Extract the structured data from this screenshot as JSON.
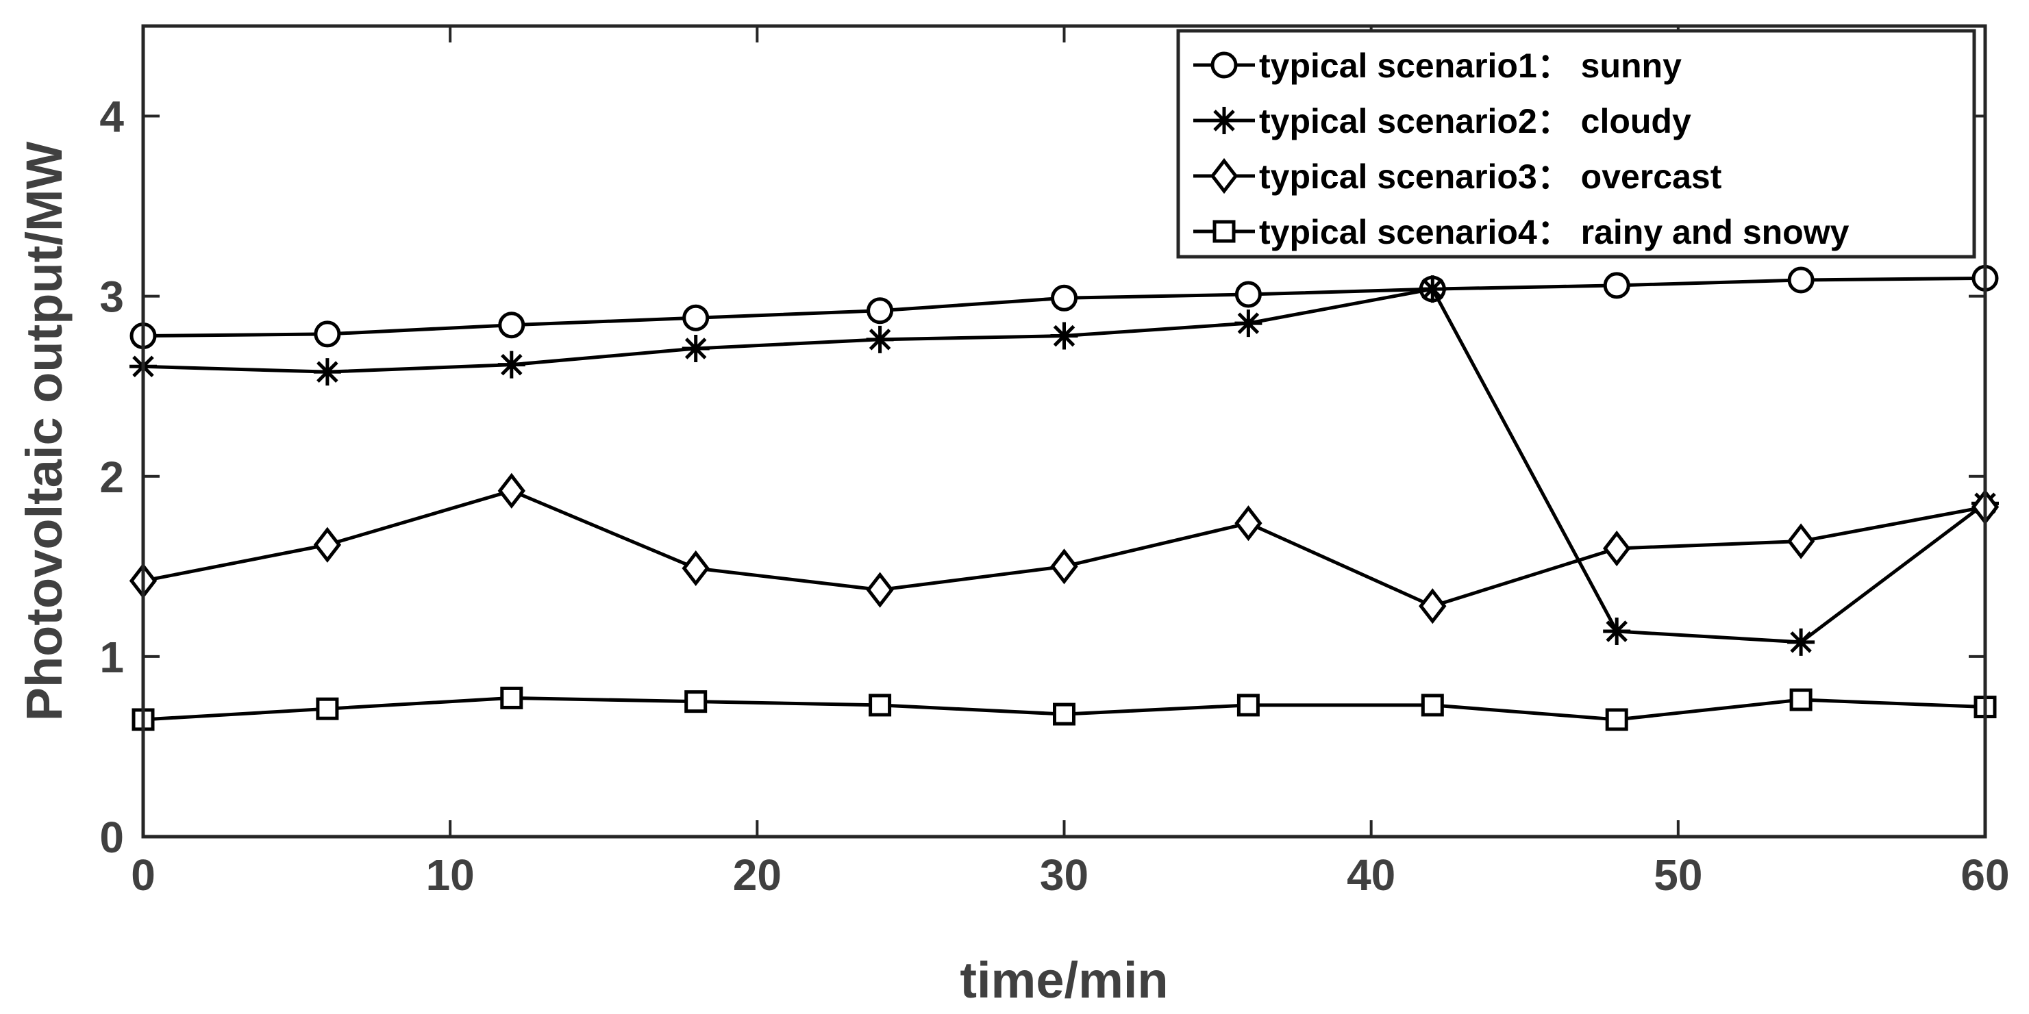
{
  "chart_data": {
    "type": "line",
    "title": "",
    "xlabel": "time/min",
    "ylabel": "Photovoltaic output/MW",
    "xlim": [
      0,
      60
    ],
    "ylim": [
      0,
      4.5
    ],
    "xticks": [
      "0",
      "10",
      "20",
      "30",
      "40",
      "50",
      "60"
    ],
    "yticks": [
      "0",
      "1",
      "2",
      "3",
      "4"
    ],
    "xtick_values": [
      0,
      10,
      20,
      30,
      40,
      50,
      60
    ],
    "ytick_values": [
      0,
      1,
      2,
      3,
      4
    ],
    "grid": false,
    "legend_position": "top-right",
    "x": [
      0,
      6,
      12,
      18,
      24,
      30,
      36,
      42,
      48,
      54,
      60
    ],
    "series": [
      {
        "name": "typical scenario1： sunny",
        "marker": "circle",
        "values": [
          2.78,
          2.79,
          2.84,
          2.88,
          2.92,
          2.99,
          3.01,
          3.04,
          3.06,
          3.09,
          3.1
        ]
      },
      {
        "name": "typical scenario2： cloudy",
        "marker": "star",
        "values": [
          2.61,
          2.58,
          2.62,
          2.71,
          2.76,
          2.78,
          2.85,
          3.04,
          1.14,
          1.08,
          1.85
        ]
      },
      {
        "name": "typical scenario3： overcast",
        "marker": "diamond",
        "values": [
          1.42,
          1.62,
          1.92,
          1.49,
          1.37,
          1.5,
          1.74,
          1.28,
          1.6,
          1.64,
          1.83
        ]
      },
      {
        "name": "typical scenario4： rainy and snowy",
        "marker": "square",
        "values": [
          0.65,
          0.71,
          0.77,
          0.75,
          0.73,
          0.68,
          0.73,
          0.73,
          0.65,
          0.76,
          0.72
        ]
      }
    ],
    "colors": {
      "line": "#000000",
      "axis": "#262626",
      "text": "#404040"
    }
  }
}
